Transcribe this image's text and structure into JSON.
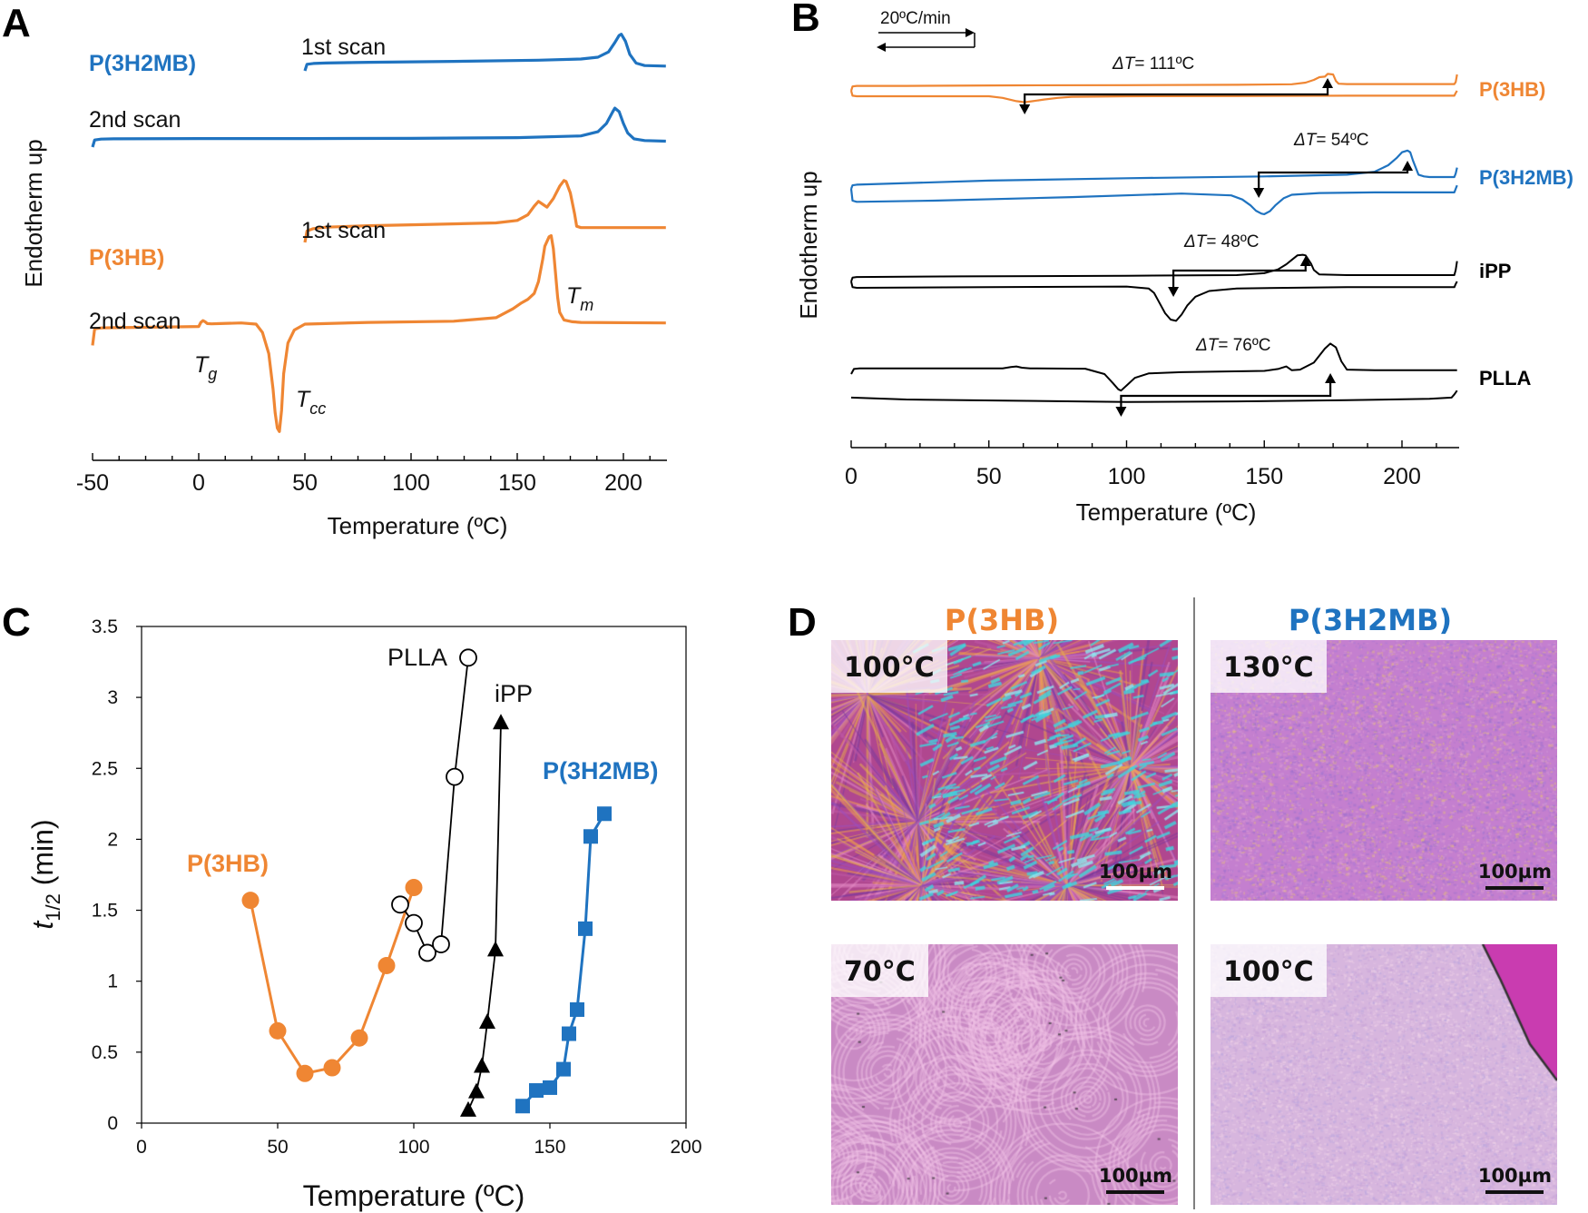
{
  "panels": {
    "a": "A",
    "b": "B",
    "c": "C",
    "d": "D"
  },
  "colors": {
    "p3hb": "#ef8633",
    "p3h2mb": "#1f73c0",
    "black": "#000000"
  },
  "chart_data": [
    {
      "id": "A",
      "type": "line",
      "title": "",
      "xlabel": "Temperature (ºC)",
      "ylabel": "Endotherm up",
      "xlim": [
        -50,
        220
      ],
      "xticks": [
        "-50",
        "0",
        "50",
        "100",
        "150",
        "200"
      ],
      "xtick_values": [
        -50,
        0,
        50,
        100,
        150,
        200
      ],
      "series": [
        {
          "name": "P(3H2MB) 1st scan",
          "color": "#1f73c0",
          "label": "P(3H2MB)",
          "scan": "1st scan",
          "x": [
            50,
            51,
            54,
            60,
            80,
            120,
            160,
            180,
            188,
            193,
            196,
            198,
            199,
            201,
            203,
            206,
            210,
            220
          ],
          "y": [
            0,
            0.55,
            0.62,
            0.66,
            0.72,
            0.8,
            0.9,
            1.0,
            1.15,
            1.6,
            2.4,
            3.0,
            3.1,
            2.5,
            1.4,
            0.65,
            0.45,
            0.4
          ]
        },
        {
          "name": "P(3H2MB) 2nd scan",
          "color": "#1f73c0",
          "scan": "2nd scan",
          "x": [
            -50,
            -49,
            -46,
            -40,
            0,
            50,
            100,
            150,
            180,
            188,
            192,
            195,
            196,
            198,
            200,
            202,
            205,
            210,
            220
          ],
          "y": [
            0,
            0.6,
            0.68,
            0.7,
            0.72,
            0.72,
            0.74,
            0.8,
            0.95,
            1.3,
            2.0,
            3.0,
            3.3,
            3.0,
            2.0,
            1.2,
            0.7,
            0.55,
            0.5
          ]
        },
        {
          "name": "P(3HB) 1st scan",
          "color": "#ef8633",
          "label": "P(3HB)",
          "scan": "1st scan",
          "x": [
            50,
            51,
            54,
            60,
            80,
            110,
            140,
            150,
            155,
            158,
            160,
            162,
            164,
            167,
            170,
            172,
            173,
            175,
            177,
            178,
            180,
            220
          ],
          "y": [
            0,
            1.2,
            1.45,
            1.6,
            1.75,
            1.9,
            2.05,
            2.3,
            2.9,
            3.8,
            4.3,
            4.0,
            3.7,
            4.6,
            5.9,
            6.5,
            6.4,
            5.2,
            3.0,
            1.7,
            1.55,
            1.55
          ]
        },
        {
          "name": "P(3HB) 2nd scan",
          "color": "#ef8633",
          "scan": "2nd scan",
          "annotations": [
            "T",
            "g",
            "T",
            "cc",
            "T",
            "m"
          ],
          "x": [
            -50,
            -49,
            -46,
            -40,
            -20,
            0,
            1,
            2,
            3,
            4,
            6,
            10,
            20,
            27,
            30,
            33,
            35,
            36,
            37,
            38,
            39,
            40,
            42,
            45,
            50,
            80,
            120,
            140,
            148,
            152,
            155,
            158,
            160,
            162,
            163,
            165,
            166,
            167,
            168,
            169,
            170,
            172,
            176,
            180,
            220
          ],
          "y": [
            -0.8,
            0.6,
            0.68,
            0.7,
            0.75,
            0.8,
            1.15,
            1.3,
            1.2,
            1.05,
            1.02,
            1.05,
            1.1,
            1.0,
            0.3,
            -1.5,
            -4.5,
            -6.5,
            -7.8,
            -8.1,
            -6.3,
            -3.2,
            -0.6,
            0.5,
            1.0,
            1.15,
            1.25,
            1.55,
            2.3,
            2.8,
            3.1,
            3.6,
            4.6,
            6.5,
            7.6,
            8.4,
            8.5,
            7.4,
            5.4,
            3.3,
            2.0,
            1.35,
            1.2,
            1.15,
            1.1
          ]
        }
      ]
    },
    {
      "id": "B",
      "type": "line",
      "title": "",
      "xlabel": "Temperature (ºC)",
      "ylabel": "Endotherm up",
      "xlim": [
        0,
        220
      ],
      "xticks": [
        "0",
        "50",
        "100",
        "150",
        "200"
      ],
      "xtick_values": [
        0,
        50,
        100,
        150,
        200
      ],
      "rate_label": "20ºC/min",
      "series": [
        {
          "name": "P(3HB) heating",
          "color": "#ef8633",
          "label": "P(3HB)",
          "delta_T": "111ºC",
          "tm_arrow": 173,
          "tc_arrow": 63,
          "x": [
            0,
            0.5,
            2,
            20,
            60,
            100,
            140,
            160,
            165,
            168,
            170,
            172,
            173,
            175,
            176,
            177,
            180,
            210,
            219,
            219.5,
            220
          ],
          "y": [
            0,
            0.4,
            0.45,
            0.45,
            0.5,
            0.52,
            0.55,
            0.6,
            0.75,
            1.0,
            1.25,
            1.3,
            1.55,
            1.5,
            0.9,
            0.65,
            0.62,
            0.62,
            0.62,
            0.8,
            1.5
          ]
        },
        {
          "name": "P(3HB) cooling",
          "color": "#ef8633",
          "x": [
            0,
            0.5,
            2,
            30,
            50,
            55,
            60,
            63,
            66,
            70,
            75,
            80,
            100,
            140,
            180,
            219,
            219.5,
            220
          ],
          "y": [
            0,
            -0.45,
            -0.5,
            -0.5,
            -0.5,
            -0.65,
            -0.95,
            -1.05,
            -0.95,
            -0.8,
            -0.65,
            -0.55,
            -0.5,
            -0.48,
            -0.45,
            -0.45,
            -0.2,
            0
          ]
        },
        {
          "name": "P(3H2MB) heating",
          "color": "#1f73c0",
          "label": "P(3H2MB)",
          "delta_T": "54ºC",
          "tm_arrow": 202,
          "tc_arrow": 148,
          "x": [
            0,
            0.5,
            2,
            50,
            100,
            150,
            180,
            190,
            195,
            198,
            200,
            202,
            203,
            204,
            206,
            208,
            210,
            219,
            219.5,
            220
          ],
          "y": [
            0,
            0.3,
            0.35,
            0.7,
            0.9,
            1.05,
            1.2,
            1.45,
            2.0,
            2.6,
            3.1,
            3.25,
            3.1,
            2.4,
            1.2,
            1.05,
            1.0,
            1.0,
            1.3,
            1.8
          ]
        },
        {
          "name": "P(3H2MB) cooling",
          "color": "#1f73c0",
          "x": [
            0,
            0.5,
            2,
            30,
            80,
            120,
            138,
            142,
            145,
            147,
            149,
            150,
            152,
            154,
            157,
            160,
            170,
            190,
            219,
            219.5,
            220
          ],
          "y": [
            0,
            -1.0,
            -1.1,
            -1.0,
            -0.7,
            -0.4,
            -0.55,
            -0.9,
            -1.4,
            -1.85,
            -2.1,
            -2.15,
            -1.9,
            -1.4,
            -0.8,
            -0.5,
            -0.35,
            -0.3,
            -0.3,
            0.0,
            0.3
          ]
        },
        {
          "name": "iPP heating",
          "color": "#000000",
          "label": "iPP",
          "delta_T": "48ºC",
          "tm_arrow": 165,
          "tc_arrow": 117,
          "x": [
            0,
            0.5,
            2,
            40,
            100,
            140,
            150,
            155,
            158,
            160,
            162,
            164,
            165,
            167,
            168,
            170,
            180,
            219,
            219.5,
            220
          ],
          "y": [
            0,
            0.3,
            0.35,
            0.4,
            0.45,
            0.5,
            0.65,
            0.95,
            1.35,
            1.7,
            2.05,
            2.1,
            2.05,
            1.4,
            0.9,
            0.55,
            0.5,
            0.5,
            0.9,
            1.6
          ]
        },
        {
          "name": "iPP cooling",
          "color": "#000000",
          "x": [
            0,
            0.5,
            2,
            50,
            100,
            108,
            110,
            112,
            114,
            116,
            118,
            120,
            122,
            125,
            130,
            140,
            180,
            219,
            219.5,
            220
          ],
          "y": [
            0,
            -0.45,
            -0.5,
            -0.45,
            -0.4,
            -0.55,
            -0.9,
            -1.7,
            -2.5,
            -3.0,
            -3.1,
            -2.6,
            -1.9,
            -1.2,
            -0.75,
            -0.55,
            -0.45,
            -0.45,
            -0.2,
            0
          ]
        },
        {
          "name": "PLLA heating",
          "color": "#000000",
          "label": "PLLA",
          "delta_T": "76ºC",
          "tm_arrow": 174,
          "tc_arrow": 98,
          "x": [
            0,
            1,
            3,
            20,
            55,
            58,
            60,
            62,
            65,
            85,
            92,
            95,
            97,
            98,
            100,
            103,
            108,
            120,
            150,
            155,
            158,
            160,
            163,
            168,
            172,
            174,
            176,
            178,
            180,
            190,
            220
          ],
          "y": [
            0,
            0.4,
            0.45,
            0.45,
            0.45,
            0.55,
            0.6,
            0.5,
            0.45,
            0.42,
            0.0,
            -0.7,
            -1.2,
            -1.3,
            -0.9,
            -0.3,
            0.05,
            0.15,
            0.25,
            0.4,
            0.6,
            0.3,
            0.35,
            0.9,
            2.0,
            2.4,
            2.1,
            1.0,
            0.35,
            0.3,
            0.3
          ]
        },
        {
          "name": "PLLA cooling",
          "color": "#000000",
          "x": [
            0,
            20,
            60,
            100,
            140,
            180,
            210,
            218,
            219,
            220
          ],
          "y": [
            -1.85,
            -2.0,
            -2.1,
            -2.2,
            -2.15,
            -2.05,
            -1.95,
            -1.85,
            -1.6,
            -1.3
          ]
        }
      ]
    },
    {
      "id": "C",
      "type": "scatter",
      "title": "",
      "xlabel": "Temperature (ºC)",
      "ylabel": "t1/2 (min)",
      "ylabel_main": "t",
      "ylabel_sub": "1/2",
      "ylabel_rest": " (min)",
      "xlim": [
        0,
        200
      ],
      "ylim": [
        0,
        3.5
      ],
      "xticks": [
        "0",
        "50",
        "100",
        "150",
        "200"
      ],
      "xtick_values": [
        0,
        50,
        100,
        150,
        200
      ],
      "yticks": [
        "0",
        "0.5",
        "1",
        "1.5",
        "2",
        "2.5",
        "3",
        "3.5"
      ],
      "ytick_values": [
        0,
        0.5,
        1,
        1.5,
        2,
        2.5,
        3,
        3.5
      ],
      "series": [
        {
          "name": "P(3HB)",
          "color": "#ef8633",
          "marker": "filled-circle",
          "x": [
            40,
            50,
            60,
            70,
            80,
            90,
            100
          ],
          "y": [
            1.57,
            0.65,
            0.35,
            0.39,
            0.6,
            1.11,
            1.66
          ]
        },
        {
          "name": "PLLA",
          "color": "#000000",
          "marker": "open-circle",
          "x": [
            95,
            100,
            105,
            110,
            115,
            120
          ],
          "y": [
            1.54,
            1.41,
            1.2,
            1.26,
            2.44,
            3.28
          ]
        },
        {
          "name": "iPP",
          "color": "#000000",
          "marker": "filled-triangle",
          "x": [
            120,
            123,
            125,
            127,
            130,
            132
          ],
          "y": [
            0.09,
            0.22,
            0.4,
            0.71,
            1.22,
            2.82
          ]
        },
        {
          "name": "P(3H2MB)",
          "color": "#1f73c0",
          "marker": "filled-square",
          "x": [
            140,
            145,
            150,
            155,
            157,
            160,
            163,
            165,
            170
          ],
          "y": [
            0.12,
            0.23,
            0.25,
            0.38,
            0.63,
            0.8,
            1.37,
            2.02,
            2.18
          ]
        }
      ]
    }
  ],
  "panel_d": {
    "headers": [
      "P(3HB)",
      "P(3H2MB)"
    ],
    "images": [
      {
        "temp": "100°C",
        "scale": "100µm",
        "bar": "white",
        "style": "spherulite-multicolor"
      },
      {
        "temp": "130°C",
        "scale": "100µm",
        "bar": "black",
        "style": "fine-grain-purple"
      },
      {
        "temp": "70°C",
        "scale": "100µm",
        "bar": "black",
        "style": "banded-spherulite"
      },
      {
        "temp": "100°C",
        "scale": "100µm",
        "bar": "black",
        "style": "fine-grain-lilac"
      }
    ]
  }
}
